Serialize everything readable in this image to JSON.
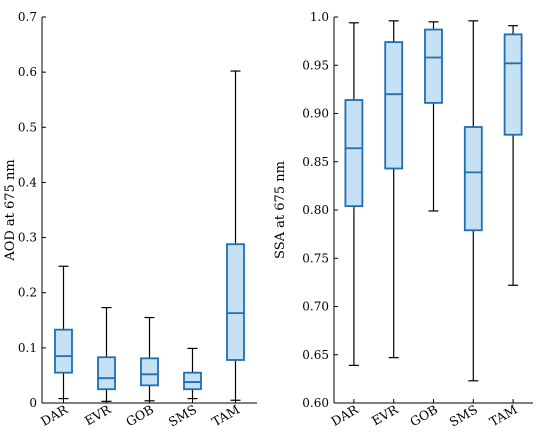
{
  "colors": {
    "box_fill": "#c6e0f4",
    "box_edge": "#1f6fb4",
    "whisker": "#000000"
  },
  "chart_data": [
    {
      "type": "box",
      "categories": [
        "DAR",
        "EVR",
        "GOB",
        "SMS",
        "TAM"
      ],
      "ylabel": "AOD at 675 nm",
      "ylim": [
        0,
        0.7
      ],
      "yticks": [
        0,
        0.1,
        0.2,
        0.3,
        0.4,
        0.5,
        0.6,
        0.7
      ],
      "ytick_labels": [
        "0",
        "0.1",
        "0.2",
        "0.3",
        "0.4",
        "0.5",
        "0.6",
        "0.7"
      ],
      "grid": false,
      "boxes": [
        {
          "category": "DAR",
          "min": 0.008,
          "q1": 0.055,
          "median": 0.085,
          "q3": 0.133,
          "max": 0.248
        },
        {
          "category": "EVR",
          "min": 0.003,
          "q1": 0.025,
          "median": 0.045,
          "q3": 0.083,
          "max": 0.173
        },
        {
          "category": "GOB",
          "min": 0.004,
          "q1": 0.032,
          "median": 0.052,
          "q3": 0.081,
          "max": 0.155
        },
        {
          "category": "SMS",
          "min": 0.008,
          "q1": 0.025,
          "median": 0.038,
          "q3": 0.055,
          "max": 0.099
        },
        {
          "category": "TAM",
          "min": 0.005,
          "q1": 0.078,
          "median": 0.163,
          "q3": 0.288,
          "max": 0.602
        }
      ]
    },
    {
      "type": "box",
      "categories": [
        "DAR",
        "EVR",
        "GOB",
        "SMS",
        "TAM"
      ],
      "ylabel": "SSA at 675 nm",
      "ylim": [
        0.6,
        1.0
      ],
      "yticks": [
        0.6,
        0.65,
        0.7,
        0.75,
        0.8,
        0.85,
        0.9,
        0.95,
        1.0
      ],
      "ytick_labels": [
        "0.60",
        "0.65",
        "0.70",
        "0.75",
        "0.80",
        "0.85",
        "0.90",
        "0.95",
        "1.0"
      ],
      "grid": false,
      "boxes": [
        {
          "category": "DAR",
          "min": 0.639,
          "q1": 0.804,
          "median": 0.864,
          "q3": 0.914,
          "max": 0.994
        },
        {
          "category": "EVR",
          "min": 0.647,
          "q1": 0.843,
          "median": 0.92,
          "q3": 0.974,
          "max": 0.996
        },
        {
          "category": "GOB",
          "min": 0.799,
          "q1": 0.911,
          "median": 0.958,
          "q3": 0.987,
          "max": 0.995
        },
        {
          "category": "SMS",
          "min": 0.623,
          "q1": 0.779,
          "median": 0.839,
          "q3": 0.886,
          "max": 0.996
        },
        {
          "category": "TAM",
          "min": 0.722,
          "q1": 0.878,
          "median": 0.952,
          "q3": 0.982,
          "max": 0.991
        }
      ]
    }
  ]
}
